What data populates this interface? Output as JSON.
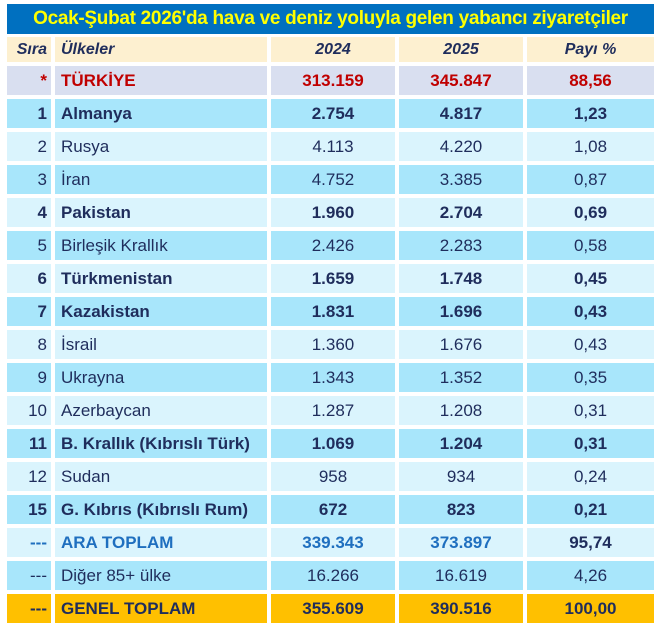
{
  "title": "Ocak-Şubat 2026'da hava ve deniz yoluyla gelen yabancı ziyaretçiler",
  "headers": [
    "Sıra",
    "Ülkeler",
    "2024",
    "2025",
    "Payı %"
  ],
  "rows": [
    {
      "rank": "*",
      "country": "TÜRKİYE",
      "y2024": "313.159",
      "y2025": "345.847",
      "share": "88,56"
    },
    {
      "rank": "1",
      "country": "Almanya",
      "y2024": "2.754",
      "y2025": "4.817",
      "share": "1,23"
    },
    {
      "rank": "2",
      "country": "Rusya",
      "y2024": "4.113",
      "y2025": "4.220",
      "share": "1,08"
    },
    {
      "rank": "3",
      "country": "İran",
      "y2024": "4.752",
      "y2025": "3.385",
      "share": "0,87"
    },
    {
      "rank": "4",
      "country": "Pakistan",
      "y2024": "1.960",
      "y2025": "2.704",
      "share": "0,69"
    },
    {
      "rank": "5",
      "country": "Birleşik Krallık",
      "y2024": "2.426",
      "y2025": "2.283",
      "share": "0,58"
    },
    {
      "rank": "6",
      "country": "Türkmenistan",
      "y2024": "1.659",
      "y2025": "1.748",
      "share": "0,45"
    },
    {
      "rank": "7",
      "country": "Kazakistan",
      "y2024": "1.831",
      "y2025": "1.696",
      "share": "0,43"
    },
    {
      "rank": "8",
      "country": "İsrail",
      "y2024": "1.360",
      "y2025": "1.676",
      "share": "0,43"
    },
    {
      "rank": "9",
      "country": "Ukrayna",
      "y2024": "1.343",
      "y2025": "1.352",
      "share": "0,35"
    },
    {
      "rank": "10",
      "country": "Azerbaycan",
      "y2024": "1.287",
      "y2025": "1.208",
      "share": "0,31"
    },
    {
      "rank": "11",
      "country": "B. Krallık (Kıbrıslı Türk)",
      "y2024": "1.069",
      "y2025": "1.204",
      "share": "0,31"
    },
    {
      "rank": "12",
      "country": "Sudan",
      "y2024": "958",
      "y2025": "934",
      "share": "0,24"
    },
    {
      "rank": "15",
      "country": "G. Kıbrıs (Kıbrıslı Rum)",
      "y2024": "672",
      "y2025": "823",
      "share": "0,21"
    },
    {
      "rank": "---",
      "country": "ARA TOPLAM",
      "y2024": "339.343",
      "y2025": "373.897",
      "share": "95,74"
    },
    {
      "rank": "---",
      "country": "Diğer 85+ ülke",
      "y2024": "16.266",
      "y2025": "16.619",
      "share": "4,26"
    },
    {
      "rank": "---",
      "country": "GENEL TOPLAM",
      "y2024": "355.609",
      "y2025": "390.516",
      "share": "100,00"
    }
  ]
}
